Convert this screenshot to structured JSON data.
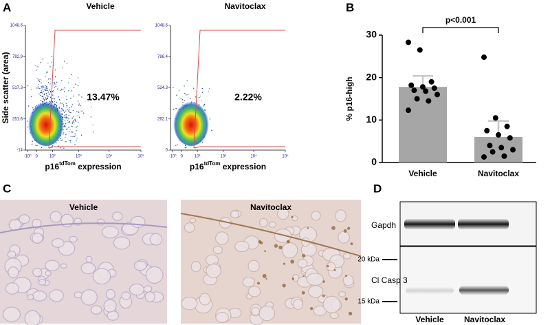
{
  "panel_labels": [
    "A",
    "B",
    "C",
    "D"
  ],
  "flow": [
    {
      "title": "Vehicle",
      "ylabel": "Side scatter (area)",
      "xlabel": {
        "main": "p16",
        "sup": "tdTom",
        "rest": " expression"
      },
      "ylim": [
        -14,
        1048.6
      ],
      "yticks": [
        1048.6,
        782.9,
        517.3,
        251.6,
        -14
      ],
      "xticks": [
        "-10⁰",
        "0",
        "10²",
        "10³",
        "10⁴",
        "10⁵"
      ],
      "gate_label": "13.47%"
    },
    {
      "title": "Navitoclax",
      "xlabel": {
        "main": "p16",
        "sup": "tdTom",
        "rest": " expression"
      },
      "ylim": [
        0,
        1048.6
      ],
      "yticks": [
        1048.6,
        786.4,
        524.3,
        262.1,
        0
      ],
      "xticks": [
        "-10⁰",
        "0",
        "10²",
        "10³",
        "10⁴",
        "10⁵"
      ],
      "gate_label": "2.22%"
    }
  ],
  "chart_data": {
    "type": "bar",
    "ylabel": "% p16-high",
    "categories": [
      "Vehicle",
      "Navitoclax"
    ],
    "values": [
      17.8,
      6.0
    ],
    "errors": [
      2.6,
      3.8
    ],
    "points": [
      [
        28.3,
        26.5,
        19.0,
        18.2,
        17.8,
        17.5,
        17.0,
        16.8,
        16.0,
        15.0,
        14.5,
        12.3
      ],
      [
        24.8,
        10.5,
        8.5,
        7.5,
        6.5,
        5.8,
        4.0,
        3.5,
        3.0,
        2.5,
        1.5,
        1.3
      ]
    ],
    "color": "#a6a6a6",
    "point_color": "#000000",
    "error_color": "#c8c8c8",
    "ylim": [
      0,
      30
    ],
    "yticks": [
      0,
      10,
      20,
      30
    ],
    "annotation": "p<0.001"
  },
  "histology": {
    "labels": [
      "Vehicle",
      "Navitoclax"
    ]
  },
  "blot": {
    "bands": [
      "Gapdh",
      "Cl Casp 3"
    ],
    "markers": [
      "20 kDa",
      "15 kDa"
    ],
    "lanes": [
      "Vehicle",
      "Navitoclax"
    ]
  }
}
